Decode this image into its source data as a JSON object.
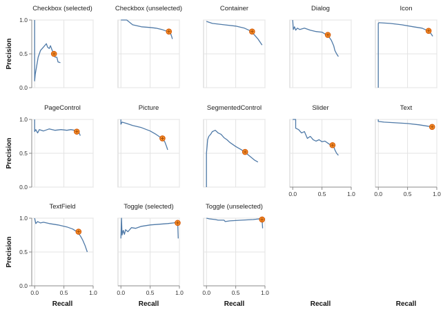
{
  "chart_data": {
    "type": "line",
    "subtype": "precision-recall small multiples",
    "xlabel": "Recall",
    "ylabel": "Precision",
    "xlim": [
      -0.05,
      1.0
    ],
    "ylim": [
      0,
      1.0
    ],
    "x_ticks": [
      "0.0",
      "0.5",
      "1.0"
    ],
    "y_ticks": [
      "0.0",
      "0.5",
      "1.0"
    ],
    "grid": true,
    "series_color": "#4e79a7",
    "marker_color": "#f28e2b",
    "panels": [
      {
        "title": "Checkbox (selected)",
        "curve": [
          [
            0,
            1.0
          ],
          [
            0,
            0.1
          ],
          [
            0.01,
            0.2
          ],
          [
            0.03,
            0.3
          ],
          [
            0.06,
            0.45
          ],
          [
            0.1,
            0.55
          ],
          [
            0.15,
            0.6
          ],
          [
            0.2,
            0.65
          ],
          [
            0.22,
            0.6
          ],
          [
            0.25,
            0.58
          ],
          [
            0.27,
            0.62
          ],
          [
            0.3,
            0.55
          ],
          [
            0.33,
            0.5
          ],
          [
            0.35,
            0.45
          ],
          [
            0.38,
            0.45
          ],
          [
            0.4,
            0.38
          ],
          [
            0.44,
            0.37
          ]
        ],
        "operating_point": [
          0.33,
          0.5
        ]
      },
      {
        "title": "Checkbox (unselected)",
        "curve": [
          [
            0,
            1.0
          ],
          [
            0.1,
            1.0
          ],
          [
            0.2,
            0.93
          ],
          [
            0.35,
            0.9
          ],
          [
            0.5,
            0.89
          ],
          [
            0.6,
            0.88
          ],
          [
            0.7,
            0.86
          ],
          [
            0.8,
            0.83
          ],
          [
            0.85,
            0.8
          ],
          [
            0.87,
            0.75
          ],
          [
            0.88,
            0.72
          ]
        ],
        "operating_point": [
          0.82,
          0.83
        ]
      },
      {
        "title": "Container",
        "curve": [
          [
            0,
            0.98
          ],
          [
            0.1,
            0.95
          ],
          [
            0.3,
            0.93
          ],
          [
            0.5,
            0.91
          ],
          [
            0.65,
            0.88
          ],
          [
            0.75,
            0.84
          ],
          [
            0.82,
            0.78
          ],
          [
            0.88,
            0.72
          ],
          [
            0.95,
            0.63
          ]
        ],
        "operating_point": [
          0.78,
          0.83
        ]
      },
      {
        "title": "Dialog",
        "curve": [
          [
            0,
            1.0
          ],
          [
            0.01,
            0.86
          ],
          [
            0.03,
            0.9
          ],
          [
            0.05,
            0.85
          ],
          [
            0.08,
            0.88
          ],
          [
            0.12,
            0.86
          ],
          [
            0.2,
            0.88
          ],
          [
            0.3,
            0.85
          ],
          [
            0.4,
            0.83
          ],
          [
            0.5,
            0.82
          ],
          [
            0.58,
            0.78
          ],
          [
            0.62,
            0.75
          ],
          [
            0.66,
            0.7
          ],
          [
            0.7,
            0.62
          ],
          [
            0.72,
            0.55
          ],
          [
            0.75,
            0.5
          ],
          [
            0.78,
            0.46
          ]
        ],
        "operating_point": [
          0.6,
          0.78
        ]
      },
      {
        "title": "Icon",
        "curve": [
          [
            0,
            0.0
          ],
          [
            0,
            0.95
          ],
          [
            0.01,
            0.96
          ],
          [
            0.2,
            0.95
          ],
          [
            0.4,
            0.93
          ],
          [
            0.6,
            0.9
          ],
          [
            0.75,
            0.88
          ],
          [
            0.85,
            0.84
          ],
          [
            0.9,
            0.8
          ],
          [
            0.93,
            0.76
          ]
        ],
        "operating_point": [
          0.86,
          0.84
        ]
      },
      {
        "title": "PageControl",
        "curve": [
          [
            0,
            1.0
          ],
          [
            0,
            0.82
          ],
          [
            0.02,
            0.85
          ],
          [
            0.05,
            0.8
          ],
          [
            0.08,
            0.85
          ],
          [
            0.15,
            0.83
          ],
          [
            0.25,
            0.86
          ],
          [
            0.35,
            0.84
          ],
          [
            0.45,
            0.85
          ],
          [
            0.55,
            0.84
          ],
          [
            0.62,
            0.85
          ],
          [
            0.68,
            0.84
          ],
          [
            0.72,
            0.82
          ],
          [
            0.76,
            0.8
          ],
          [
            0.78,
            0.76
          ]
        ],
        "operating_point": [
          0.72,
          0.82
        ]
      },
      {
        "title": "Picture",
        "curve": [
          [
            0,
            1.0
          ],
          [
            0,
            0.93
          ],
          [
            0.02,
            0.96
          ],
          [
            0.1,
            0.94
          ],
          [
            0.2,
            0.91
          ],
          [
            0.35,
            0.88
          ],
          [
            0.5,
            0.83
          ],
          [
            0.6,
            0.78
          ],
          [
            0.7,
            0.72
          ],
          [
            0.75,
            0.67
          ],
          [
            0.78,
            0.6
          ],
          [
            0.8,
            0.55
          ]
        ],
        "operating_point": [
          0.71,
          0.72
        ]
      },
      {
        "title": "SegmentedControl",
        "curve": [
          [
            0,
            0.0
          ],
          [
            0,
            0.5
          ],
          [
            0.01,
            0.6
          ],
          [
            0.02,
            0.7
          ],
          [
            0.04,
            0.75
          ],
          [
            0.07,
            0.78
          ],
          [
            0.1,
            0.82
          ],
          [
            0.15,
            0.84
          ],
          [
            0.2,
            0.8
          ],
          [
            0.25,
            0.78
          ],
          [
            0.3,
            0.73
          ],
          [
            0.35,
            0.7
          ],
          [
            0.4,
            0.66
          ],
          [
            0.5,
            0.6
          ],
          [
            0.6,
            0.55
          ],
          [
            0.68,
            0.5
          ],
          [
            0.75,
            0.45
          ],
          [
            0.82,
            0.4
          ],
          [
            0.88,
            0.37
          ]
        ],
        "operating_point": [
          0.66,
          0.52
        ]
      },
      {
        "title": "Slider",
        "curve": [
          [
            0,
            1.0
          ],
          [
            0.05,
            1.0
          ],
          [
            0.05,
            0.87
          ],
          [
            0.1,
            0.85
          ],
          [
            0.15,
            0.8
          ],
          [
            0.2,
            0.82
          ],
          [
            0.25,
            0.72
          ],
          [
            0.3,
            0.75
          ],
          [
            0.35,
            0.7
          ],
          [
            0.4,
            0.68
          ],
          [
            0.45,
            0.7
          ],
          [
            0.5,
            0.67
          ],
          [
            0.55,
            0.68
          ],
          [
            0.6,
            0.65
          ],
          [
            0.65,
            0.62
          ],
          [
            0.7,
            0.6
          ],
          [
            0.72,
            0.55
          ],
          [
            0.75,
            0.5
          ],
          [
            0.78,
            0.47
          ]
        ],
        "operating_point": [
          0.68,
          0.62
        ]
      },
      {
        "title": "Text",
        "curve": [
          [
            0,
            1.0
          ],
          [
            0,
            0.97
          ],
          [
            0.1,
            0.96
          ],
          [
            0.3,
            0.95
          ],
          [
            0.5,
            0.94
          ],
          [
            0.7,
            0.92
          ],
          [
            0.85,
            0.9
          ],
          [
            0.95,
            0.88
          ]
        ],
        "operating_point": [
          0.92,
          0.89
        ]
      },
      {
        "title": "TextField",
        "curve": [
          [
            0,
            1.0
          ],
          [
            0.02,
            0.92
          ],
          [
            0.05,
            0.95
          ],
          [
            0.1,
            0.93
          ],
          [
            0.15,
            0.94
          ],
          [
            0.25,
            0.92
          ],
          [
            0.4,
            0.9
          ],
          [
            0.55,
            0.87
          ],
          [
            0.65,
            0.84
          ],
          [
            0.72,
            0.8
          ],
          [
            0.78,
            0.74
          ],
          [
            0.82,
            0.68
          ],
          [
            0.86,
            0.6
          ],
          [
            0.9,
            0.5
          ]
        ],
        "operating_point": [
          0.75,
          0.8
        ]
      },
      {
        "title": "Toggle (selected)",
        "curve": [
          [
            0,
            0.7
          ],
          [
            0.01,
            1.0
          ],
          [
            0.02,
            0.75
          ],
          [
            0.04,
            0.82
          ],
          [
            0.06,
            0.76
          ],
          [
            0.08,
            0.83
          ],
          [
            0.12,
            0.8
          ],
          [
            0.18,
            0.86
          ],
          [
            0.25,
            0.85
          ],
          [
            0.35,
            0.88
          ],
          [
            0.5,
            0.9
          ],
          [
            0.65,
            0.91
          ],
          [
            0.8,
            0.92
          ],
          [
            0.9,
            0.93
          ],
          [
            0.97,
            0.94
          ],
          [
            0.98,
            0.7
          ]
        ],
        "operating_point": [
          0.97,
          0.93
        ]
      },
      {
        "title": "Toggle (unselected)",
        "curve": [
          [
            0,
            1.0
          ],
          [
            0.05,
            0.99
          ],
          [
            0.15,
            0.98
          ],
          [
            0.2,
            0.97
          ],
          [
            0.3,
            0.97
          ],
          [
            0.32,
            0.95
          ],
          [
            0.4,
            0.96
          ],
          [
            0.6,
            0.97
          ],
          [
            0.8,
            0.98
          ],
          [
            0.9,
            0.99
          ],
          [
            0.95,
            0.98
          ],
          [
            0.96,
            0.85
          ]
        ],
        "operating_point": [
          0.95,
          0.98
        ]
      }
    ]
  }
}
